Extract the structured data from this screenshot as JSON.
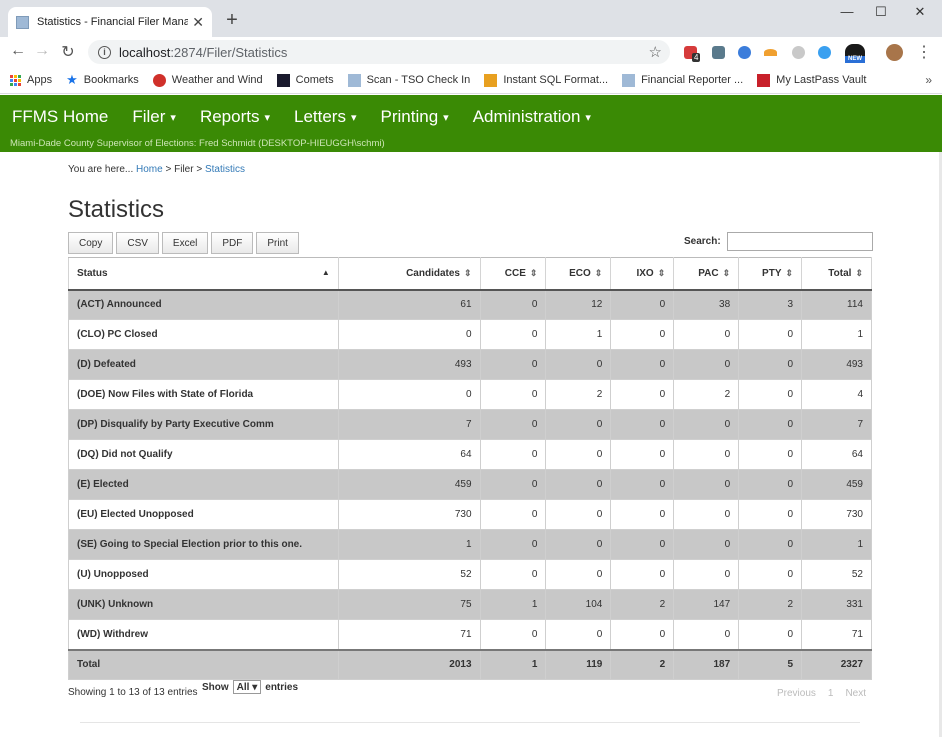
{
  "browser": {
    "tab_title": "Statistics - Financial Filer Manage",
    "url_host": "localhost",
    "url_path": ":2874/Filer/Statistics",
    "bookmarks": [
      "Apps",
      "Bookmarks",
      "Weather and Wind",
      "Comets",
      "Scan - TSO Check In",
      "Instant SQL Format...",
      "Financial Reporter ...",
      "My LastPass Vault"
    ],
    "more": "»",
    "new_badge": "NEW",
    "ext_badge": "4",
    "icons": [
      "back-icon",
      "forward-icon",
      "reload-icon",
      "info-icon",
      "star-icon",
      "close-icon",
      "plus-icon",
      "minimize-icon",
      "maximize-icon"
    ]
  },
  "nav": {
    "home": "FFMS Home",
    "items": [
      "Filer",
      "Reports",
      "Letters",
      "Printing",
      "Administration"
    ],
    "caret": "▾",
    "subtitle": "Miami-Dade County Supervisor of Elections: Fred Schmidt (DESKTOP-HIEUGGH\\schmi)"
  },
  "breadcrumb": {
    "prefix": "You are here...",
    "home": "Home",
    "sep": ">",
    "filer": "Filer",
    "current": "Statistics"
  },
  "page": {
    "title": "Statistics",
    "buttons": [
      "Copy",
      "CSV",
      "Excel",
      "PDF",
      "Print"
    ],
    "search_label": "Search:",
    "search_value": ""
  },
  "table": {
    "headers": [
      "Status",
      "Candidates",
      "CCE",
      "ECO",
      "IXO",
      "PAC",
      "PTY",
      "Total"
    ],
    "rows": [
      [
        "(ACT) Announced",
        "61",
        "0",
        "12",
        "0",
        "38",
        "3",
        "114"
      ],
      [
        "(CLO) PC Closed",
        "0",
        "0",
        "1",
        "0",
        "0",
        "0",
        "1"
      ],
      [
        "(D) Defeated",
        "493",
        "0",
        "0",
        "0",
        "0",
        "0",
        "493"
      ],
      [
        "(DOE) Now Files with State of Florida",
        "0",
        "0",
        "2",
        "0",
        "2",
        "0",
        "4"
      ],
      [
        "(DP) Disqualify by Party Executive Comm",
        "7",
        "0",
        "0",
        "0",
        "0",
        "0",
        "7"
      ],
      [
        "(DQ) Did not Qualify",
        "64",
        "0",
        "0",
        "0",
        "0",
        "0",
        "64"
      ],
      [
        "(E) Elected",
        "459",
        "0",
        "0",
        "0",
        "0",
        "0",
        "459"
      ],
      [
        "(EU) Elected Unopposed",
        "730",
        "0",
        "0",
        "0",
        "0",
        "0",
        "730"
      ],
      [
        "(SE) Going to Special Election prior to this one.",
        "1",
        "0",
        "0",
        "0",
        "0",
        "0",
        "1"
      ],
      [
        "(U) Unopposed",
        "52",
        "0",
        "0",
        "0",
        "0",
        "0",
        "52"
      ],
      [
        "(UNK) Unknown",
        "75",
        "1",
        "104",
        "2",
        "147",
        "2",
        "331"
      ],
      [
        "(WD) Withdrew",
        "71",
        "0",
        "0",
        "0",
        "0",
        "0",
        "71"
      ]
    ],
    "total": [
      "Total",
      "2013",
      "1",
      "119",
      "2",
      "187",
      "5",
      "2327"
    ]
  },
  "footer": {
    "info": "Showing 1 to 13 of 13 entries",
    "show": "Show",
    "length_value": "All",
    "entries": "entries",
    "previous": "Previous",
    "page": "1",
    "next": "Next"
  }
}
